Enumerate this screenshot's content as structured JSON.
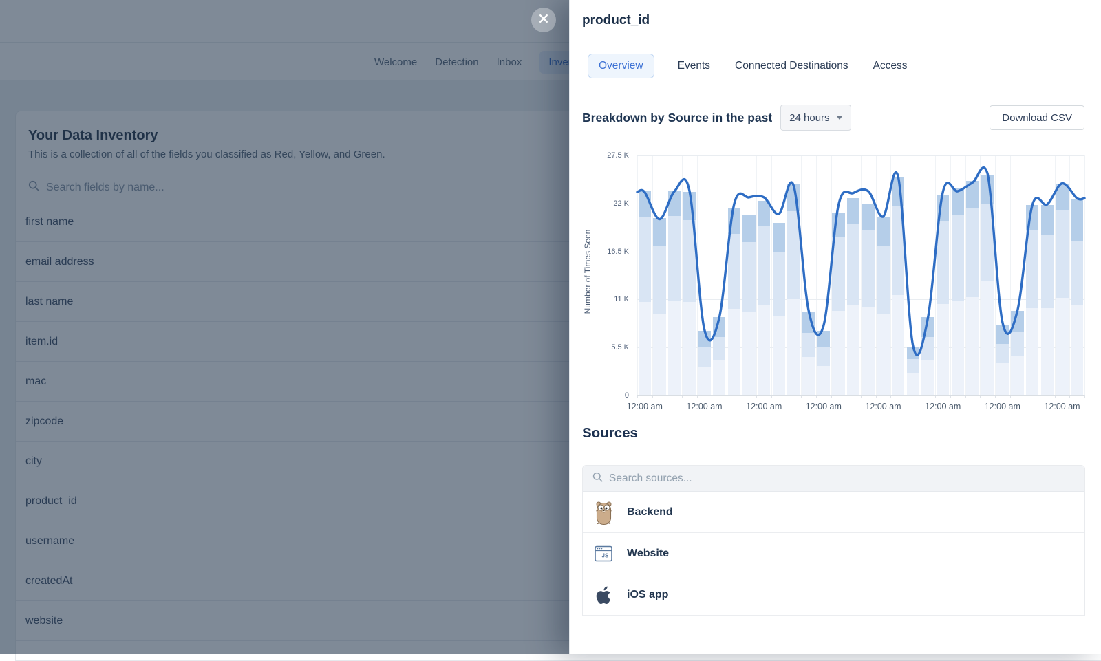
{
  "page": {
    "nav": {
      "items": [
        {
          "label": "Welcome",
          "active": false
        },
        {
          "label": "Detection",
          "active": false
        },
        {
          "label": "Inbox",
          "active": false
        },
        {
          "label": "Inventory",
          "active": true
        }
      ]
    },
    "inventory": {
      "title": "Your Data Inventory",
      "subtitle": "This is a collection of all of the fields you classified as Red, Yellow, and Green.",
      "search_placeholder": "Search fields by name...",
      "fields": [
        "first name",
        "email address",
        "last name",
        "item.id",
        "mac",
        "zipcode",
        "city",
        "product_id",
        "username",
        "createdAt",
        "website"
      ]
    }
  },
  "drawer": {
    "title": "product_id",
    "tabs": [
      {
        "label": "Overview",
        "active": true
      },
      {
        "label": "Events",
        "active": false
      },
      {
        "label": "Connected Destinations",
        "active": false
      },
      {
        "label": "Access",
        "active": false
      }
    ],
    "section": {
      "heading": "Breakdown by Source in the past",
      "range_value": "24 hours",
      "download_label": "Download CSV"
    },
    "sources": {
      "heading": "Sources",
      "search_placeholder": "Search sources...",
      "items": [
        {
          "name": "Backend",
          "icon": "gopher-icon"
        },
        {
          "name": "Website",
          "icon": "javascript-browser-icon"
        },
        {
          "name": "iOS app",
          "icon": "apple-icon"
        }
      ]
    }
  },
  "chart_data": {
    "type": "bar",
    "subtype": "stacked-bars-with-line-overlay",
    "title": "Breakdown by Source in the past 24 hours",
    "xlabel": "",
    "ylabel": "Number of Times Seen",
    "ylim": [
      0,
      27500
    ],
    "ytick_labels": [
      "0",
      "5.5 K",
      "11 K",
      "16.5 K",
      "22 K",
      "27.5 K"
    ],
    "x_tick_labels": [
      "12:00 am",
      "12:00 am",
      "12:00 am",
      "12:00 am",
      "12:00 am",
      "12:00 am",
      "12:00 am",
      "12:00 am"
    ],
    "x_tick_every_n_bars": 4,
    "grid": true,
    "legend": false,
    "bar_colors": {
      "bottom": "#edf2fa",
      "middle": "#d9e5f4",
      "top": "#b5cee9"
    },
    "line_color": "#2e6dc4",
    "series": [
      {
        "name": "segment-bottom",
        "values": [
          10700,
          9300,
          10800,
          10700,
          3300,
          4100,
          9900,
          9500,
          10300,
          9100,
          11100,
          4400,
          3400,
          9700,
          10400,
          10100,
          9400,
          11500,
          2600,
          4100,
          10500,
          10900,
          11300,
          13100,
          3700,
          4500,
          10000,
          10000,
          11200,
          10400
        ]
      },
      {
        "name": "segment-middle",
        "values": [
          9700,
          7900,
          9800,
          9400,
          2200,
          2600,
          8600,
          8100,
          9200,
          7400,
          10000,
          2800,
          2100,
          8400,
          9300,
          8800,
          7700,
          10200,
          1600,
          2600,
          9400,
          9800,
          10100,
          8900,
          2200,
          2800,
          8900,
          8400,
          10000,
          7300
        ]
      },
      {
        "name": "segment-top",
        "values": [
          3000,
          3100,
          2900,
          3200,
          1900,
          2300,
          3000,
          3100,
          2800,
          3300,
          3100,
          2400,
          1900,
          2900,
          2900,
          3000,
          3400,
          3300,
          1400,
          2300,
          3000,
          3100,
          3200,
          3300,
          2100,
          2400,
          2900,
          3400,
          3100,
          4800
        ]
      }
    ],
    "line": {
      "name": "total-trend",
      "values": [
        23300,
        20200,
        23400,
        23500,
        7600,
        8900,
        21900,
        22700,
        22700,
        20800,
        24000,
        9700,
        8000,
        21800,
        23200,
        23400,
        20500,
        25100,
        5700,
        8900,
        23300,
        23400,
        24400,
        25400,
        8400,
        9700,
        21800,
        21900,
        24300,
        22600
      ]
    }
  }
}
